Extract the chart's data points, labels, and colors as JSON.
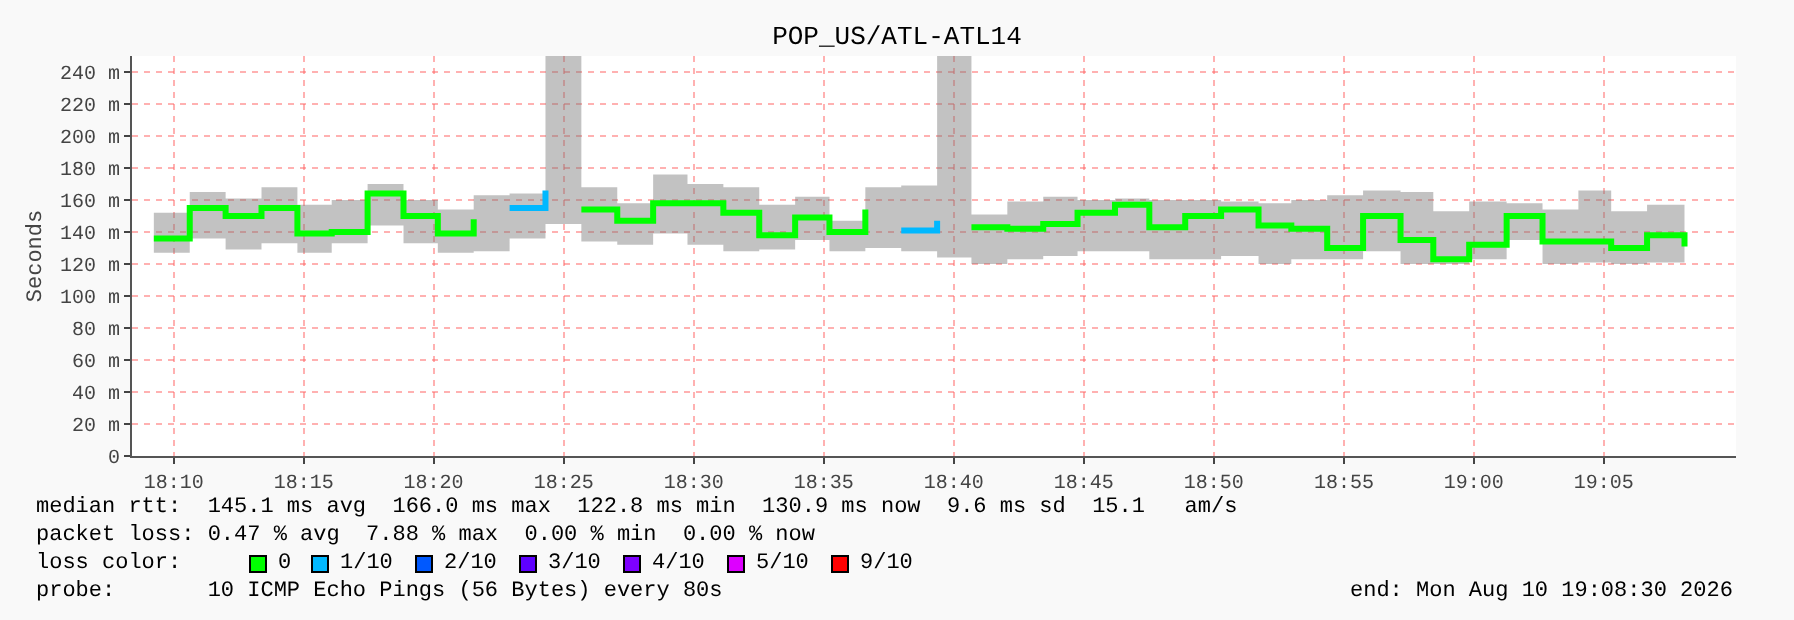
{
  "chart_data": {
    "type": "step",
    "title": "POP_US/ATL-ATL14",
    "ylabel": "Seconds",
    "legend_title": "loss color:",
    "x": [
      18.154,
      18.177,
      18.2,
      18.223,
      18.246,
      18.268,
      18.291,
      18.314,
      18.336,
      18.359,
      18.382,
      18.405,
      18.428,
      18.451,
      18.474,
      18.496,
      18.519,
      18.542,
      18.565,
      18.587,
      18.61,
      18.633,
      18.656,
      18.678,
      18.701,
      18.724,
      18.746,
      18.77,
      18.792,
      18.815,
      18.838,
      18.862,
      18.883,
      18.906,
      18.929,
      18.953,
      18.974,
      18.997,
      19.021,
      19.044,
      19.067,
      19.088,
      19.111,
      19.135
    ],
    "series": [
      {
        "name": "0",
        "color": "#00ff00",
        "values": [
          136,
          155,
          150,
          155,
          139,
          140,
          164,
          150,
          139,
          148,
          null,
          null,
          154,
          147,
          158,
          158,
          152,
          138,
          149,
          140,
          154,
          null,
          null,
          143,
          142,
          145,
          152,
          157,
          143,
          150,
          154,
          144,
          142,
          130,
          150,
          135,
          123,
          132,
          150,
          134,
          134,
          130,
          138,
          131
        ],
        "lower": [
          127,
          136,
          129,
          133,
          127,
          133,
          144,
          133,
          127,
          128,
          136,
          145,
          134,
          132,
          139,
          132,
          128,
          129,
          135,
          128,
          130,
          128,
          124,
          120,
          123,
          125,
          128,
          128,
          123,
          123,
          125,
          120,
          123,
          123,
          128,
          120,
          120,
          123,
          135,
          120,
          121,
          120,
          121,
          121
        ],
        "upper": [
          152,
          165,
          161,
          168,
          157,
          160,
          170,
          160,
          154,
          163,
          164,
          250,
          168,
          158,
          176,
          170,
          168,
          157,
          162,
          147,
          168,
          169,
          250,
          151,
          159,
          162,
          160,
          161,
          160,
          160,
          159,
          158,
          160,
          163,
          166,
          165,
          153,
          159,
          158,
          154,
          166,
          153,
          157,
          158
        ]
      },
      {
        "name": "1/10",
        "color": "#00b8ff",
        "values": [
          null,
          null,
          null,
          null,
          null,
          null,
          null,
          null,
          null,
          null,
          155,
          166,
          null,
          null,
          null,
          null,
          null,
          null,
          null,
          null,
          null,
          141,
          147,
          null,
          null,
          null,
          null,
          null,
          null,
          null,
          null,
          null,
          null,
          null,
          null,
          null,
          null,
          null,
          null,
          null,
          null,
          null,
          null,
          null
        ]
      },
      {
        "name": "2/10",
        "color": "#0059ff",
        "values": [
          null,
          null,
          null,
          null,
          null,
          null,
          null,
          null,
          null,
          null,
          null,
          null,
          null,
          null,
          null,
          null,
          null,
          null,
          null,
          null,
          null,
          null,
          null,
          null,
          null,
          null,
          null,
          null,
          null,
          null,
          null,
          null,
          null,
          null,
          null,
          null,
          null,
          null,
          null,
          null,
          null,
          null,
          null,
          null
        ]
      },
      {
        "name": "3/10",
        "color": "#5e00ff",
        "values": [
          null,
          null,
          null,
          null,
          null,
          null,
          null,
          null,
          null,
          null,
          null,
          null,
          null,
          null,
          null,
          null,
          null,
          null,
          null,
          null,
          null,
          null,
          null,
          null,
          null,
          null,
          null,
          null,
          null,
          null,
          null,
          null,
          null,
          null,
          null,
          null,
          null,
          null,
          null,
          null,
          null,
          null,
          null,
          null
        ]
      },
      {
        "name": "4/10",
        "color": "#7e00ff",
        "values": [
          null,
          null,
          null,
          null,
          null,
          null,
          null,
          null,
          null,
          null,
          null,
          null,
          null,
          null,
          null,
          null,
          null,
          null,
          null,
          null,
          null,
          null,
          null,
          null,
          null,
          null,
          null,
          null,
          null,
          null,
          null,
          null,
          null,
          null,
          null,
          null,
          null,
          null,
          null,
          null,
          null,
          null,
          null,
          null
        ]
      },
      {
        "name": "5/10",
        "color": "#dd00ff",
        "values": [
          null,
          null,
          null,
          null,
          null,
          null,
          null,
          null,
          null,
          null,
          null,
          null,
          null,
          null,
          null,
          null,
          null,
          null,
          null,
          null,
          null,
          null,
          null,
          null,
          null,
          null,
          null,
          null,
          null,
          null,
          null,
          null,
          null,
          null,
          null,
          null,
          null,
          null,
          null,
          null,
          null,
          null,
          null,
          null
        ]
      },
      {
        "name": "9/10",
        "color": "#ff0000",
        "values": [
          null,
          null,
          null,
          null,
          null,
          null,
          null,
          null,
          null,
          null,
          null,
          null,
          null,
          null,
          null,
          null,
          null,
          null,
          null,
          null,
          null,
          null,
          null,
          null,
          null,
          null,
          null,
          null,
          null,
          null,
          null,
          null,
          null,
          null,
          null,
          null,
          null,
          null,
          null,
          null,
          null,
          null,
          null,
          null
        ]
      }
    ],
    "xlim": [
      18.14,
      19.168
    ],
    "xticks": [
      {
        "value": 18.1667,
        "label": "18:10"
      },
      {
        "value": 18.25,
        "label": "18:15"
      },
      {
        "value": 18.3333,
        "label": "18:20"
      },
      {
        "value": 18.4167,
        "label": "18:25"
      },
      {
        "value": 18.5,
        "label": "18:30"
      },
      {
        "value": 18.5833,
        "label": "18:35"
      },
      {
        "value": 18.6667,
        "label": "18:40"
      },
      {
        "value": 18.75,
        "label": "18:45"
      },
      {
        "value": 18.8333,
        "label": "18:50"
      },
      {
        "value": 18.9167,
        "label": "18:55"
      },
      {
        "value": 19.0,
        "label": "19:00"
      },
      {
        "value": 19.0833,
        "label": "19:05"
      }
    ],
    "ylim": [
      0,
      250
    ],
    "yticks": [
      0,
      {
        "value": 20,
        "label": "20 m"
      },
      {
        "value": 40,
        "label": "40 m"
      },
      {
        "value": 60,
        "label": "60 m"
      },
      {
        "value": 80,
        "label": "80 m"
      },
      {
        "value": 100,
        "label": "100 m"
      },
      {
        "value": 120,
        "label": "120 m"
      },
      {
        "value": 140,
        "label": "140 m"
      },
      {
        "value": 160,
        "label": "160 m"
      },
      {
        "value": 180,
        "label": "180 m"
      },
      {
        "value": 200,
        "label": "200 m"
      },
      {
        "value": 220,
        "label": "220 m"
      },
      {
        "value": 240,
        "label": "240 m"
      }
    ],
    "grid": true,
    "legend": "bottom",
    "annotations": [
      "median rtt:  145.1 ms avg  166.0 ms max  122.8 ms min  130.9 ms now  9.6 ms sd  15.1   am/s",
      "packet loss: 0.47 % avg  7.88 % max  0.00 % min  0.00 % now",
      "probe:       10 ICMP Echo Pings (56 Bytes) every 80s",
      "end: Mon Aug 10 19:08:30 2026"
    ]
  }
}
